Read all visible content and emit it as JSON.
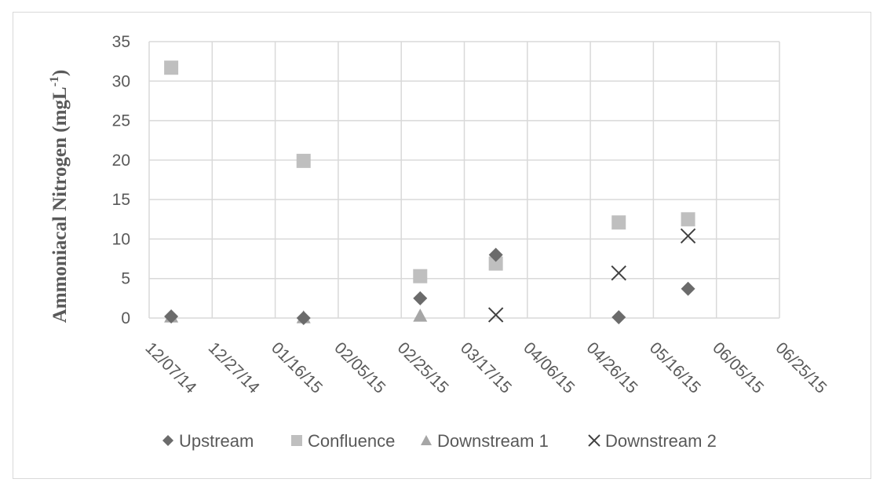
{
  "chart_data": {
    "type": "scatter",
    "title": "",
    "ylabel": "Ammoniacal Nitrogen (mgL",
    "ylabel_superscript": "-1",
    "ylabel_close": ")",
    "xlabel": "",
    "ylim": [
      0,
      35
    ],
    "y_ticks": [
      "0",
      "5",
      "10",
      "15",
      "20",
      "25",
      "30",
      "35"
    ],
    "x_axis_type": "date",
    "xlim": [
      "2014-12-07",
      "2015-06-25"
    ],
    "x_ticks": [
      "12/07/14",
      "12/27/14",
      "01/16/15",
      "02/05/15",
      "02/25/15",
      "03/17/15",
      "04/06/15",
      "04/26/15",
      "05/16/15",
      "06/05/15",
      "06/25/15"
    ],
    "grid": true,
    "legend_position": "bottom",
    "series": [
      {
        "name": "Upstream",
        "marker": "diamond",
        "color": "#6b6b6b",
        "points": [
          {
            "x": "2014-12-14",
            "y": 0.2
          },
          {
            "x": "2015-01-25",
            "y": 0.0
          },
          {
            "x": "2015-03-03",
            "y": 2.5
          },
          {
            "x": "2015-03-27",
            "y": 8.0
          },
          {
            "x": "2015-05-05",
            "y": 0.1
          },
          {
            "x": "2015-05-27",
            "y": 3.7
          }
        ]
      },
      {
        "name": "Confluence",
        "marker": "square",
        "color": "#bfbfbf",
        "points": [
          {
            "x": "2014-12-14",
            "y": 31.7
          },
          {
            "x": "2015-01-25",
            "y": 19.9
          },
          {
            "x": "2015-03-03",
            "y": 5.3
          },
          {
            "x": "2015-03-27",
            "y": 6.9
          },
          {
            "x": "2015-05-05",
            "y": 12.1
          },
          {
            "x": "2015-05-27",
            "y": 12.5
          }
        ]
      },
      {
        "name": "Downstream 1",
        "marker": "triangle",
        "color": "#a6a6a6",
        "points": [
          {
            "x": "2014-12-14",
            "y": 0.2
          },
          {
            "x": "2015-01-25",
            "y": 0.1
          },
          {
            "x": "2015-03-03",
            "y": 0.3
          }
        ]
      },
      {
        "name": "Downstream 2",
        "marker": "x",
        "color": "#404040",
        "points": [
          {
            "x": "2015-03-27",
            "y": 0.4
          },
          {
            "x": "2015-05-05",
            "y": 5.7
          },
          {
            "x": "2015-05-27",
            "y": 10.4
          }
        ]
      }
    ]
  }
}
